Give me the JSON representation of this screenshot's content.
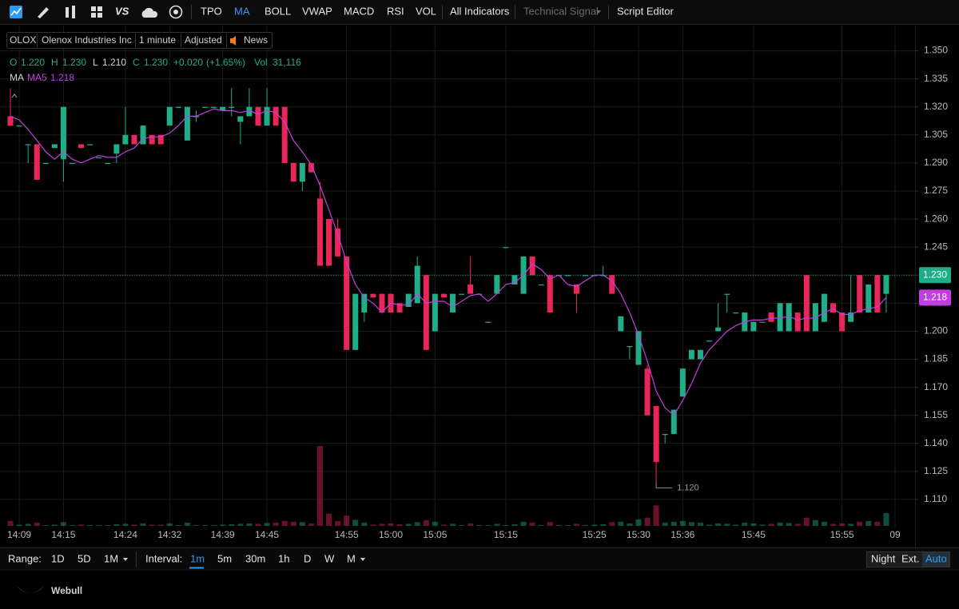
{
  "toolbar": {
    "vs_icon": "VS",
    "items": [
      "TPO",
      "MA",
      "BOLL",
      "VWAP",
      "MACD",
      "RSI",
      "VOL",
      "All Indicators",
      "Technical Signal",
      "Script Editor"
    ]
  },
  "header": {
    "symbol": "OLOX",
    "name": "Olenox Industries Inc",
    "interval": "1 minute",
    "adjust": "Adjusted",
    "news": "News"
  },
  "ohlc_legend": [
    {
      "key": "O",
      "text": "1.220"
    },
    {
      "key": "H",
      "text": "1.230"
    },
    {
      "key": "L",
      "text": "1.210"
    },
    {
      "key": "C",
      "text": "1.230"
    },
    {
      "key": "+0.020",
      "text": "(+1.65%)"
    },
    {
      "key": "Vol",
      "text": "31,116"
    }
  ],
  "ma_legend": {
    "group": "MA",
    "name": "MA5"
  },
  "chart_data": {
    "type": "candlestick",
    "up_color": "#1fae8a",
    "down_color": "#e8265a",
    "ma_color": "#c23ee0",
    "grid": true,
    "ylim": [
      1.095,
      1.3635
    ],
    "yticks": [
      {
        "value": 1.35,
        "label": "1.350"
      },
      {
        "value": 1.335,
        "label": "1.335"
      },
      {
        "value": 1.32,
        "label": "1.320"
      },
      {
        "value": 1.305,
        "label": "1.305"
      },
      {
        "value": 1.29,
        "label": "1.290"
      },
      {
        "value": 1.275,
        "label": "1.275"
      },
      {
        "value": 1.26,
        "label": "1.260"
      },
      {
        "value": 1.245,
        "label": "1.245"
      },
      {
        "value": 1.23,
        "label": "1.230"
      },
      {
        "value": 1.215,
        "label": "1.215"
      },
      {
        "value": 1.2,
        "label": "1.200"
      },
      {
        "value": 1.185,
        "label": "1.185"
      },
      {
        "value": 1.17,
        "label": "1.170"
      },
      {
        "value": 1.155,
        "label": "1.155"
      },
      {
        "value": 1.14,
        "label": "1.140"
      },
      {
        "value": 1.125,
        "label": "1.125"
      },
      {
        "value": 1.11,
        "label": "1.110"
      }
    ],
    "last_price": {
      "value": 1.23,
      "label": "1.230"
    },
    "low_marker": {
      "value": 1.12,
      "label": "1.120"
    },
    "categories": [
      null,
      "14:09",
      null,
      null,
      null,
      null,
      "14:15",
      null,
      null,
      null,
      null,
      null,
      null,
      "14:24",
      null,
      null,
      null,
      null,
      "14:32",
      null,
      null,
      null,
      null,
      null,
      "14:39",
      null,
      null,
      null,
      null,
      "14:45",
      null,
      null,
      null,
      null,
      null,
      null,
      null,
      null,
      "14:55",
      null,
      null,
      null,
      null,
      "15:00",
      null,
      null,
      null,
      null,
      "15:05",
      null,
      null,
      null,
      null,
      null,
      null,
      null,
      "15:15",
      null,
      null,
      null,
      null,
      null,
      null,
      null,
      null,
      null,
      "15:25",
      null,
      null,
      null,
      null,
      "15:30",
      null,
      null,
      null,
      null,
      "15:36",
      null,
      null,
      null,
      null,
      null,
      null,
      null,
      "15:45",
      null,
      null,
      null,
      null,
      null,
      null,
      null,
      null,
      null,
      "15:55",
      null,
      null,
      null,
      null,
      null,
      "09"
    ],
    "open": [
      1.315,
      1.31,
      1.3,
      1.3,
      1.29,
      1.298,
      1.292,
      1.29,
      1.3,
      1.3,
      1.293,
      1.29,
      1.295,
      1.3,
      1.305,
      1.3,
      1.305,
      1.305,
      1.31,
      1.32,
      1.302,
      1.315,
      1.32,
      1.32,
      1.318,
      1.32,
      1.312,
      1.315,
      1.32,
      1.31,
      1.32,
      1.32,
      1.29,
      1.28,
      1.29,
      1.271,
      1.26,
      1.255,
      1.24,
      1.19,
      1.21,
      1.22,
      1.22,
      1.22,
      1.215,
      1.213,
      1.215,
      1.23,
      1.2,
      1.22,
      1.21,
      1.22,
      1.225,
      1.22,
      1.205,
      1.22,
      1.245,
      1.225,
      1.22,
      1.24,
      1.225,
      1.23,
      1.23,
      1.23,
      1.225,
      1.23,
      1.23,
      1.23,
      1.23,
      1.2,
      1.192,
      1.182,
      1.18,
      1.16,
      1.145,
      1.145,
      1.165,
      1.185,
      1.185,
      1.195,
      1.2,
      1.22,
      1.21,
      1.2,
      1.2,
      1.205,
      1.21,
      1.2,
      1.2,
      1.21,
      1.23,
      1.2,
      1.205,
      1.215,
      1.21,
      1.205,
      1.23,
      1.21,
      1.23,
      1.22,
      null
    ],
    "high": [
      1.33,
      1.31,
      1.3,
      1.3,
      1.29,
      1.3,
      1.32,
      1.29,
      1.3,
      1.3,
      1.293,
      1.29,
      1.3,
      1.32,
      1.305,
      1.31,
      1.305,
      1.305,
      1.32,
      1.32,
      1.32,
      1.318,
      1.32,
      1.32,
      1.32,
      1.33,
      1.315,
      1.33,
      1.32,
      1.33,
      1.32,
      1.32,
      1.29,
      1.29,
      1.29,
      1.28,
      1.26,
      1.26,
      1.24,
      1.22,
      1.22,
      1.22,
      1.22,
      1.22,
      1.215,
      1.22,
      1.24,
      1.23,
      1.22,
      1.22,
      1.22,
      1.22,
      1.24,
      1.22,
      1.205,
      1.23,
      1.245,
      1.23,
      1.24,
      1.24,
      1.225,
      1.23,
      1.23,
      1.23,
      1.225,
      1.23,
      1.23,
      1.235,
      1.23,
      1.208,
      1.192,
      1.2,
      1.182,
      1.16,
      1.145,
      1.158,
      1.18,
      1.19,
      1.19,
      1.195,
      1.215,
      1.22,
      1.21,
      1.21,
      1.205,
      1.205,
      1.21,
      1.215,
      1.215,
      1.21,
      1.23,
      1.215,
      1.22,
      1.215,
      1.21,
      1.23,
      1.23,
      1.225,
      1.23,
      1.23,
      null
    ],
    "low": [
      1.31,
      1.31,
      1.29,
      1.281,
      1.29,
      1.298,
      1.28,
      1.29,
      1.298,
      1.3,
      1.293,
      1.29,
      1.29,
      1.3,
      1.3,
      1.3,
      1.3,
      1.3,
      1.31,
      1.32,
      1.302,
      1.312,
      1.32,
      1.32,
      1.318,
      1.315,
      1.3,
      1.315,
      1.31,
      1.31,
      1.31,
      1.29,
      1.28,
      1.275,
      1.285,
      1.235,
      1.235,
      1.24,
      1.19,
      1.19,
      1.205,
      1.218,
      1.21,
      1.21,
      1.21,
      1.213,
      1.215,
      1.19,
      1.2,
      1.218,
      1.21,
      1.22,
      1.22,
      1.22,
      1.205,
      1.22,
      1.245,
      1.225,
      1.22,
      1.23,
      1.225,
      1.21,
      1.23,
      1.23,
      1.21,
      1.23,
      1.23,
      1.23,
      1.22,
      1.2,
      1.185,
      1.182,
      1.155,
      1.12,
      1.14,
      1.145,
      1.165,
      1.185,
      1.185,
      1.195,
      1.2,
      1.21,
      1.21,
      1.2,
      1.2,
      1.205,
      1.205,
      1.2,
      1.2,
      1.2,
      1.2,
      1.2,
      1.205,
      1.21,
      1.2,
      1.205,
      1.21,
      1.21,
      1.21,
      1.21,
      null
    ],
    "close": [
      1.31,
      1.31,
      1.3,
      1.281,
      1.29,
      1.3,
      1.32,
      1.29,
      1.298,
      1.3,
      1.293,
      1.29,
      1.3,
      1.305,
      1.3,
      1.31,
      1.3,
      1.3,
      1.32,
      1.32,
      1.32,
      1.315,
      1.32,
      1.32,
      1.32,
      1.32,
      1.315,
      1.32,
      1.31,
      1.32,
      1.31,
      1.29,
      1.28,
      1.29,
      1.285,
      1.235,
      1.235,
      1.24,
      1.19,
      1.22,
      1.22,
      1.218,
      1.21,
      1.21,
      1.21,
      1.22,
      1.235,
      1.19,
      1.22,
      1.218,
      1.22,
      1.22,
      1.22,
      1.22,
      1.205,
      1.23,
      1.245,
      1.23,
      1.24,
      1.23,
      1.225,
      1.21,
      1.23,
      1.23,
      1.22,
      1.23,
      1.23,
      1.23,
      1.22,
      1.208,
      1.192,
      1.2,
      1.155,
      1.13,
      1.145,
      1.158,
      1.18,
      1.19,
      1.19,
      1.195,
      1.202,
      1.22,
      1.21,
      1.21,
      1.205,
      1.205,
      1.205,
      1.215,
      1.215,
      1.2,
      1.2,
      1.215,
      1.22,
      1.21,
      1.2,
      1.21,
      1.21,
      1.225,
      1.21,
      1.23,
      null
    ],
    "volume": [
      12000,
      3000,
      5000,
      8000,
      2000,
      3000,
      9000,
      2000,
      3000,
      2000,
      2000,
      2000,
      4000,
      5000,
      3000,
      6000,
      3000,
      3000,
      6000,
      2000,
      8000,
      2000,
      2000,
      2000,
      3000,
      4000,
      5000,
      6000,
      5000,
      7000,
      8000,
      12000,
      10000,
      9000,
      6000,
      195000,
      30000,
      12000,
      25000,
      15000,
      8000,
      3000,
      5000,
      6000,
      4000,
      5000,
      9000,
      14000,
      10000,
      3000,
      5000,
      2000,
      6000,
      2000,
      2000,
      5000,
      2000,
      4000,
      10000,
      8000,
      2000,
      9000,
      2000,
      2000,
      5000,
      2000,
      3000,
      4000,
      9000,
      10000,
      6000,
      16000,
      20000,
      50000,
      8000,
      10000,
      12000,
      9000,
      8000,
      3000,
      6000,
      5000,
      3000,
      8000,
      6000,
      3000,
      5000,
      8000,
      7000,
      5000,
      20000,
      14000,
      10000,
      5000,
      6000,
      5000,
      10000,
      12000,
      10000,
      31116,
      null
    ],
    "ma5": [
      1.315,
      1.313,
      1.308,
      1.302,
      1.296,
      1.292,
      1.296,
      1.292,
      1.29,
      1.292,
      1.294,
      1.293,
      1.293,
      1.296,
      1.298,
      1.303,
      1.304,
      1.304,
      1.306,
      1.31,
      1.315,
      1.315,
      1.317,
      1.319,
      1.318,
      1.318,
      1.317,
      1.318,
      1.316,
      1.318,
      1.317,
      1.312,
      1.302,
      1.296,
      1.289,
      1.278,
      1.265,
      1.252,
      1.237,
      1.225,
      1.218,
      1.215,
      1.21,
      1.215,
      1.214,
      1.214,
      1.22,
      1.215,
      1.216,
      1.216,
      1.213,
      1.216,
      1.219,
      1.22,
      1.216,
      1.22,
      1.225,
      1.226,
      1.23,
      1.236,
      1.233,
      1.228,
      1.23,
      1.225,
      1.224,
      1.227,
      1.23,
      1.23,
      1.227,
      1.22,
      1.21,
      1.198,
      1.184,
      1.168,
      1.159,
      1.155,
      1.163,
      1.172,
      1.183,
      1.19,
      1.195,
      1.2,
      1.203,
      1.205,
      1.206,
      1.206,
      1.207,
      1.207,
      1.208,
      1.206,
      1.207,
      1.207,
      1.21,
      1.212,
      1.209,
      1.209,
      1.211,
      1.212,
      1.213,
      1.218,
      null
    ]
  },
  "range_bar": {
    "range_label": "Range:",
    "ranges": [
      "1D",
      "5D",
      "1M"
    ],
    "interval_label": "Interval:",
    "intervals": [
      "1m",
      "5m",
      "30m",
      "1h",
      "D",
      "W",
      "M"
    ],
    "sessions": [
      "Night",
      "Ext.",
      "Auto"
    ]
  },
  "footer": {
    "brand": "Webull"
  }
}
